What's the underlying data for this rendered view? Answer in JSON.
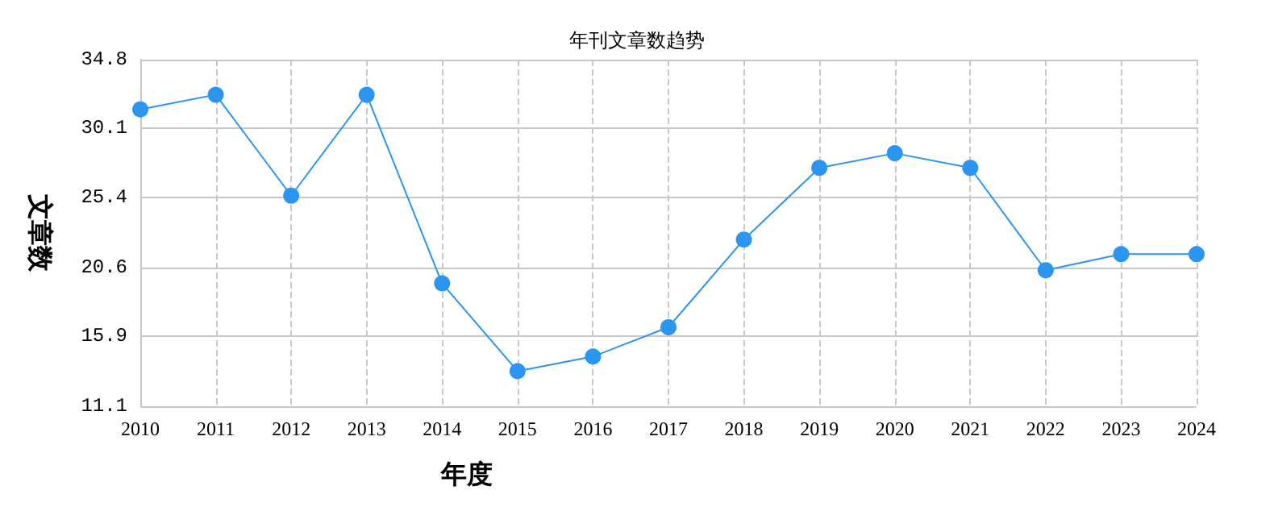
{
  "chart_data": {
    "type": "line",
    "title": "年刊文章数趋势",
    "xlabel": "年度",
    "ylabel": "文章数",
    "categories": [
      "2010",
      "2011",
      "2012",
      "2013",
      "2014",
      "2015",
      "2016",
      "2017",
      "2018",
      "2019",
      "2020",
      "2021",
      "2022",
      "2023",
      "2024"
    ],
    "series": [
      {
        "color": "#2b95f0",
        "values": [
          31.4,
          32.4,
          25.5,
          32.4,
          19.5,
          13.5,
          14.5,
          16.5,
          22.5,
          27.4,
          28.4,
          27.4,
          20.4,
          21.5,
          21.5
        ]
      }
    ],
    "ylim": [
      11.1,
      34.8
    ],
    "yticks": [
      11.1,
      15.9,
      20.6,
      25.4,
      30.1,
      34.8
    ],
    "grid": true,
    "marker": "circle",
    "line_style": "solid"
  }
}
